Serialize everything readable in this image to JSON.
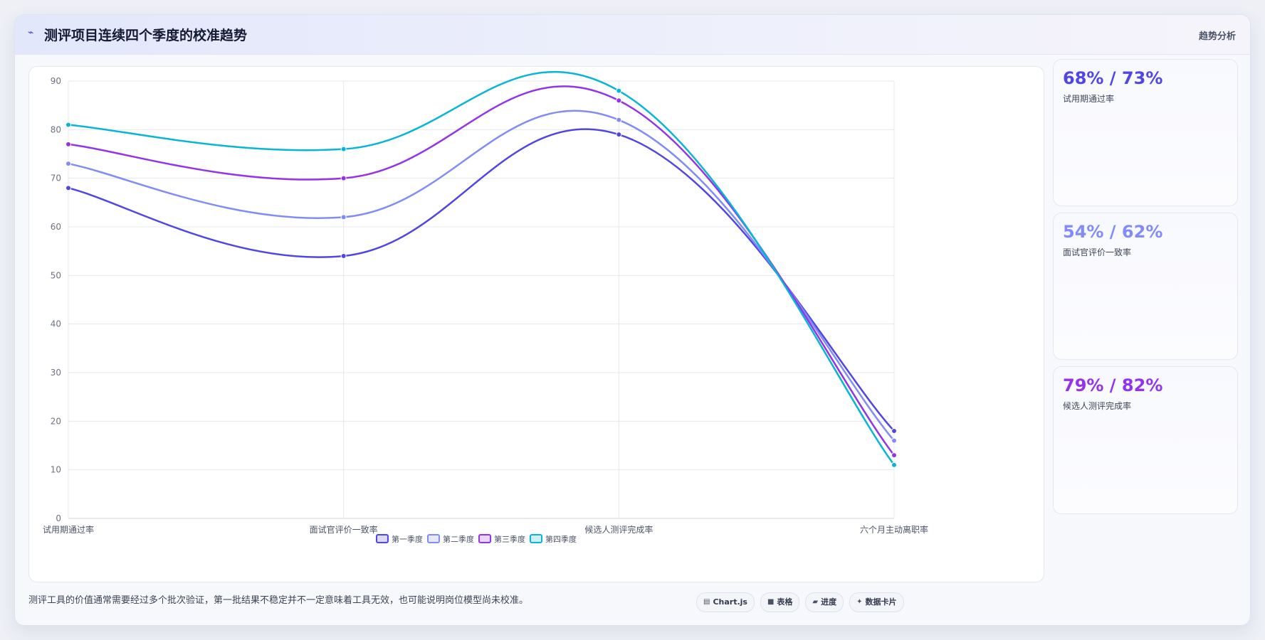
{
  "header": {
    "icon": "trend-icon",
    "title": "测评项目连续四个季度的校准趋势",
    "right_label": "趋势分析"
  },
  "chart_data": {
    "type": "line",
    "categories": [
      "试用期通过率",
      "面试官评价一致率",
      "候选人测评完成率",
      "六个月主动离职率"
    ],
    "series": [
      {
        "name": "第一季度",
        "values": [
          68,
          54,
          79,
          18
        ],
        "color": "#4f46e5"
      },
      {
        "name": "第二季度",
        "values": [
          73,
          62,
          82,
          16
        ],
        "color": "#818cf8"
      },
      {
        "name": "第三季度",
        "values": [
          77,
          70,
          86,
          13
        ],
        "color": "#9333ea"
      },
      {
        "name": "第四季度",
        "values": [
          81,
          76,
          88,
          11
        ],
        "color": "#06b6d4"
      }
    ],
    "ylim": [
      0,
      90
    ],
    "yticks": [
      0,
      10,
      20,
      30,
      40,
      50,
      60,
      70,
      80,
      90
    ],
    "grid": true,
    "legend": "bottom"
  },
  "stats": [
    {
      "value": "68% / 73%",
      "label": "试用期通过率",
      "color": "#4f46e5"
    },
    {
      "value": "54% / 62%",
      "label": "面试官评价一致率",
      "color": "#818cf8"
    },
    {
      "value": "79% / 82%",
      "label": "候选人测评完成率",
      "color": "#9333ea"
    }
  ],
  "footnote": "测评工具的价值通常需要经过多个批次验证，第一批结果不稳定并不一定意味着工具无效，也可能说明岗位模型尚未校准。",
  "chips": [
    {
      "icon": "chart-icon",
      "label": "Chart.js"
    },
    {
      "icon": "table-icon",
      "label": "表格"
    },
    {
      "icon": "progress-icon",
      "label": "进度"
    },
    {
      "icon": "card-icon",
      "label": "数据卡片"
    }
  ]
}
